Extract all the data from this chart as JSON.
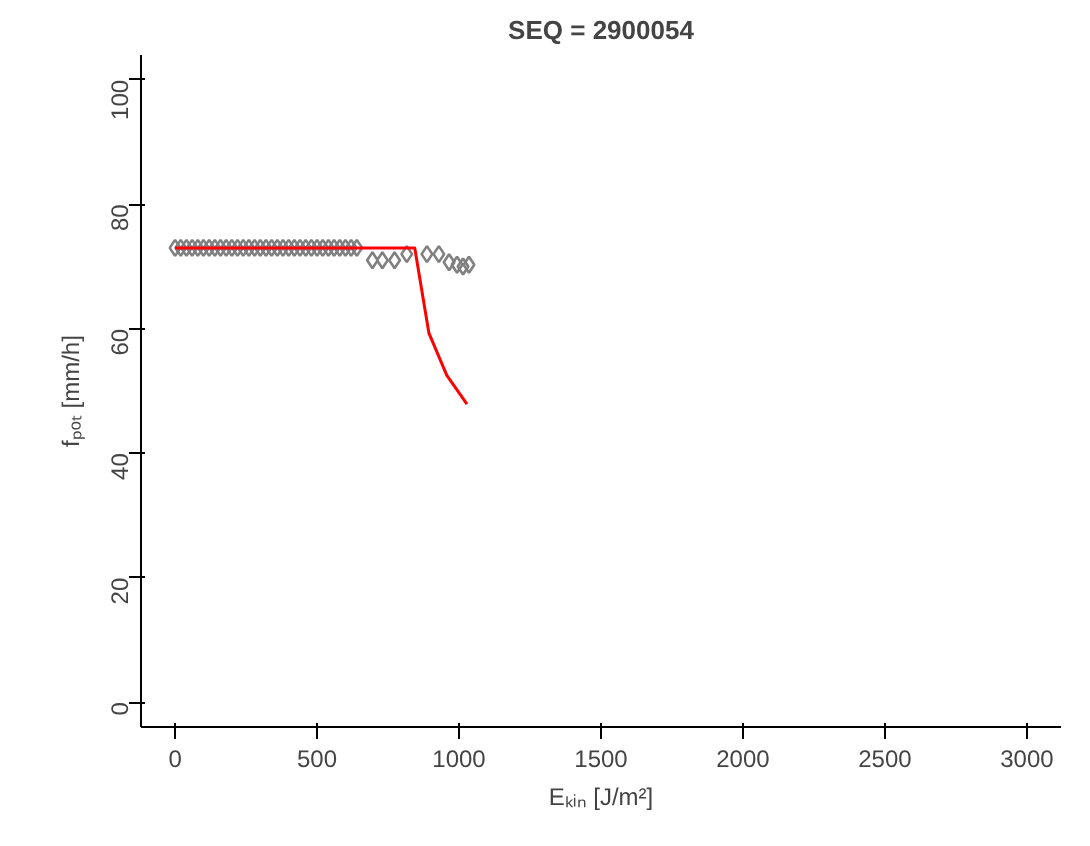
{
  "chart_data": {
    "type": "scatter",
    "title": "SEQ = 2900054",
    "xlabel": "Eₖᵢₙ [J/m²]",
    "ylabel": "fₚₒₜ [mm/h]",
    "xlim": [
      -120,
      3120
    ],
    "ylim": [
      -4,
      104
    ],
    "xticks": [
      0,
      500,
      1000,
      1500,
      2000,
      2500,
      3000
    ],
    "yticks": [
      0,
      20,
      40,
      60,
      80,
      100
    ],
    "grid": false,
    "marker": "diamond",
    "series": [
      {
        "color": "#808080",
        "x": [
          0,
          20,
          40,
          60,
          80,
          100,
          120,
          140,
          160,
          180,
          200,
          220,
          240,
          260,
          280,
          300,
          320,
          340,
          360,
          380,
          400,
          420,
          440,
          460,
          480,
          500,
          520,
          540,
          560,
          580,
          600,
          620,
          640,
          695,
          730,
          773,
          816,
          887,
          929,
          965,
          993,
          1014,
          1035
        ],
        "values": [
          73,
          73,
          73,
          73,
          73,
          73,
          73,
          73,
          73,
          73,
          73,
          73,
          73,
          73,
          73,
          73,
          73,
          73,
          73,
          73,
          73,
          73,
          73,
          73,
          73,
          73,
          73,
          73,
          73,
          73,
          73,
          73,
          73,
          71,
          71,
          71,
          72,
          72,
          72,
          70.7,
          70.3,
          70,
          70.3
        ]
      },
      {
        "type": "line",
        "color": "#ff0000",
        "marker": "none",
        "x": [
          0,
          844,
          894,
          957,
          1028
        ],
        "values": [
          73,
          73,
          59.3,
          52.5,
          47.9
        ]
      }
    ]
  }
}
